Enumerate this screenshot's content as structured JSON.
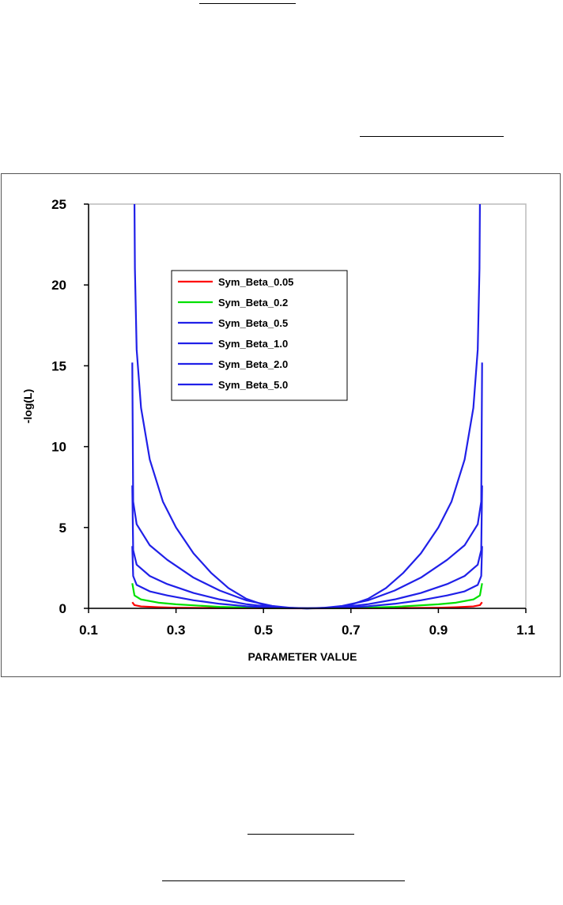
{
  "chart_data": {
    "type": "line",
    "title": "",
    "xlabel": "PARAMETER VALUE",
    "ylabel": "-log(L)",
    "xlim": [
      0.1,
      1.1
    ],
    "ylim": [
      0,
      25
    ],
    "x_ticks": [
      "0.1",
      "0.3",
      "0.5",
      "0.7",
      "0.9",
      "1.1"
    ],
    "y_ticks": [
      "0",
      "5",
      "10",
      "15",
      "20",
      "25"
    ],
    "grid": false,
    "legend_position": "upper-left",
    "series": [
      {
        "name": "Sym_Beta_0.05",
        "color": "#ff0000",
        "x": [
          0.2,
          0.205,
          0.22,
          0.26,
          0.3,
          0.4,
          0.5,
          0.6,
          0.7,
          0.8,
          0.9,
          0.94,
          0.98,
          0.995,
          1.0
        ],
        "y": [
          0.38,
          0.2,
          0.12,
          0.07,
          0.04,
          0.015,
          0.004,
          0.0,
          0.004,
          0.015,
          0.04,
          0.07,
          0.12,
          0.2,
          0.38
        ]
      },
      {
        "name": "Sym_Beta_0.2",
        "color": "#00e000",
        "x": [
          0.2,
          0.205,
          0.22,
          0.26,
          0.3,
          0.4,
          0.5,
          0.6,
          0.7,
          0.8,
          0.9,
          0.94,
          0.98,
          0.995,
          1.0
        ],
        "y": [
          1.55,
          0.8,
          0.55,
          0.35,
          0.25,
          0.09,
          0.02,
          0.0,
          0.02,
          0.09,
          0.25,
          0.35,
          0.55,
          0.8,
          1.55
        ]
      },
      {
        "name": "Sym_Beta_0.5",
        "color": "#2020e8",
        "x": [
          0.2,
          0.202,
          0.21,
          0.24,
          0.28,
          0.34,
          0.4,
          0.46,
          0.52,
          0.56,
          0.6,
          0.64,
          0.68,
          0.74,
          0.8,
          0.86,
          0.92,
          0.96,
          0.99,
          0.998,
          1.0
        ],
        "y": [
          3.85,
          2.0,
          1.45,
          1.05,
          0.8,
          0.5,
          0.28,
          0.13,
          0.04,
          0.01,
          0.0,
          0.01,
          0.04,
          0.13,
          0.28,
          0.5,
          0.8,
          1.05,
          1.45,
          2.0,
          3.85
        ]
      },
      {
        "name": "Sym_Beta_1.0",
        "color": "#2020e8",
        "x": [
          0.2,
          0.202,
          0.21,
          0.24,
          0.28,
          0.34,
          0.4,
          0.46,
          0.52,
          0.56,
          0.6,
          0.64,
          0.68,
          0.74,
          0.8,
          0.86,
          0.92,
          0.96,
          0.99,
          0.998,
          1.0
        ],
        "y": [
          7.6,
          3.6,
          2.7,
          2.0,
          1.5,
          0.95,
          0.55,
          0.26,
          0.08,
          0.02,
          0.0,
          0.02,
          0.08,
          0.26,
          0.55,
          0.95,
          1.5,
          2.0,
          2.7,
          3.6,
          7.6
        ]
      },
      {
        "name": "Sym_Beta_2.0",
        "color": "#2020e8",
        "x": [
          0.2,
          0.202,
          0.21,
          0.24,
          0.28,
          0.34,
          0.4,
          0.46,
          0.52,
          0.56,
          0.6,
          0.64,
          0.68,
          0.74,
          0.8,
          0.86,
          0.92,
          0.96,
          0.99,
          0.998,
          1.0
        ],
        "y": [
          15.2,
          6.6,
          5.2,
          3.9,
          3.0,
          1.9,
          1.1,
          0.5,
          0.15,
          0.04,
          0.0,
          0.04,
          0.15,
          0.5,
          1.1,
          1.9,
          3.0,
          3.9,
          5.2,
          6.6,
          15.2
        ]
      },
      {
        "name": "Sym_Beta_5.0",
        "color": "#2020e8",
        "x": [
          0.205,
          0.206,
          0.21,
          0.22,
          0.24,
          0.27,
          0.3,
          0.34,
          0.38,
          0.42,
          0.46,
          0.5,
          0.54,
          0.58,
          0.6,
          0.62,
          0.66,
          0.7,
          0.74,
          0.78,
          0.82,
          0.86,
          0.9,
          0.93,
          0.96,
          0.98,
          0.99,
          0.994,
          0.995
        ],
        "y": [
          25.0,
          21.0,
          16.0,
          12.4,
          9.2,
          6.6,
          5.0,
          3.4,
          2.2,
          1.25,
          0.6,
          0.22,
          0.06,
          0.01,
          0.0,
          0.01,
          0.06,
          0.22,
          0.6,
          1.25,
          2.2,
          3.4,
          5.0,
          6.6,
          9.2,
          12.4,
          16.0,
          21.0,
          25.0
        ]
      }
    ]
  }
}
